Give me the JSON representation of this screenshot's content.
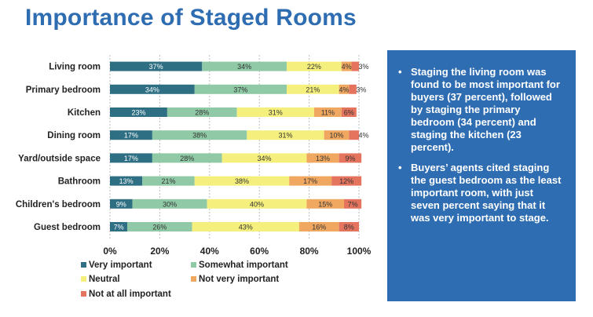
{
  "colors": {
    "title": "#2f6db2",
    "panel_bg": "#2f6db2",
    "label": "#222222",
    "very_important": "#2e6f83",
    "somewhat_important": "#8fc9a5",
    "neutral": "#f5ef7d",
    "not_very_important": "#f0a860",
    "not_at_all_important": "#e5745f",
    "gridline": "#bbbbbb"
  },
  "bullets": [
    "Staging the living room was found to be most important for buyers (37 percent), followed by staging the primary bedroom (34 percent) and staging the kitchen (23 percent).",
    "Buyers’ agents cited staging the guest bedroom as the least important room, with just seven percent saying that it was very important to stage."
  ],
  "chart_data": {
    "type": "bar",
    "orientation": "horizontal",
    "stacked": true,
    "title": "Importance of Staged Rooms",
    "categories": [
      "Living room",
      "Primary bedroom",
      "Kitchen",
      "Dining room",
      "Yard/outside space",
      "Bathroom",
      "Children's bedroom",
      "Guest bedroom"
    ],
    "series": [
      {
        "name": "Very important",
        "values": [
          37,
          34,
          23,
          17,
          17,
          13,
          9,
          7
        ],
        "labels": [
          "37%",
          "34%",
          "23%",
          "17%",
          "17%",
          "13%",
          "9%",
          "7%"
        ]
      },
      {
        "name": "Somewhat important",
        "values": [
          34,
          37,
          28,
          38,
          28,
          21,
          30,
          26
        ],
        "labels": [
          "34%",
          "37%",
          "28%",
          "38%",
          "28%",
          "21%",
          "30%",
          "26%"
        ]
      },
      {
        "name": "Neutral",
        "values": [
          22,
          21,
          31,
          31,
          34,
          38,
          40,
          43
        ],
        "labels": [
          "22%",
          "21%",
          "31%",
          "31%",
          "34%",
          "38%",
          "40%",
          "43%"
        ]
      },
      {
        "name": "Not very important",
        "values": [
          4,
          4,
          11,
          10,
          13,
          17,
          15,
          16
        ],
        "labels": [
          "4%",
          "4%",
          "11%",
          "10%",
          "13%",
          "17%",
          "15%",
          "16%"
        ]
      },
      {
        "name": "Not at all important",
        "values": [
          3,
          3,
          6,
          4,
          9,
          12,
          7,
          8
        ],
        "labels": [
          "3%",
          "3%",
          "6%",
          "4%",
          "9%",
          "12%",
          "7%",
          "8%"
        ]
      }
    ],
    "xlim": [
      0,
      100
    ],
    "xticks": [
      0,
      20,
      40,
      60,
      80,
      100
    ],
    "xtick_labels": [
      "0%",
      "20%",
      "40%",
      "60%",
      "80%",
      "100%"
    ],
    "legend_position": "bottom-left",
    "grid": true
  }
}
